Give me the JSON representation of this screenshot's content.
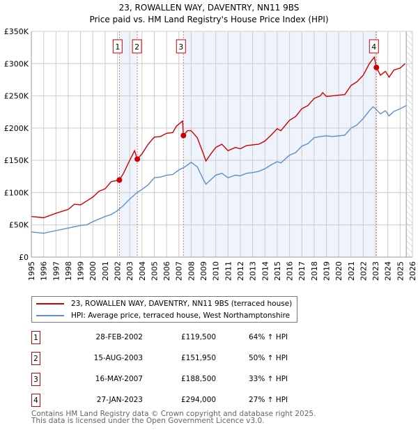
{
  "chart_data": {
    "type": "line",
    "title": "23, ROWALLEN WAY, DAVENTRY, NN11 9BS",
    "subtitle": "Price paid vs. HM Land Registry's House Price Index (HPI)",
    "xlim": [
      1995,
      2026
    ],
    "ylim": [
      0,
      350000
    ],
    "x_ticks": [
      "1995",
      "1996",
      "1997",
      "1998",
      "1999",
      "2000",
      "2001",
      "2002",
      "2003",
      "2004",
      "2005",
      "2006",
      "2007",
      "2008",
      "2009",
      "2010",
      "2011",
      "2012",
      "2013",
      "2014",
      "2015",
      "2016",
      "2017",
      "2018",
      "2019",
      "2020",
      "2021",
      "2022",
      "2023",
      "2024",
      "2025",
      "2026"
    ],
    "y_ticks": [
      {
        "v": 0,
        "label": "£0"
      },
      {
        "v": 50000,
        "label": "£50K"
      },
      {
        "v": 100000,
        "label": "£100K"
      },
      {
        "v": 150000,
        "label": "£150K"
      },
      {
        "v": 200000,
        "label": "£200K"
      },
      {
        "v": 250000,
        "label": "£250K"
      },
      {
        "v": 300000,
        "label": "£300K"
      },
      {
        "v": 350000,
        "label": "£350K"
      }
    ],
    "grid": true,
    "series": [
      {
        "name": "23, ROWALLEN WAY, DAVENTRY, NN11 9BS (terraced house)",
        "color": "#cc0000",
        "x": [
          1995,
          1996,
          1997,
          1998,
          1998.5,
          1999,
          2000,
          2000.5,
          2001,
          2001.5,
          2002.16,
          2002.5,
          2003,
          2003.4,
          2003.62,
          2004,
          2004.5,
          2005,
          2005.5,
          2006,
          2006.5,
          2006.8,
          2007.3,
          2007.37,
          2007.7,
          2008,
          2008.5,
          2009,
          2009.2,
          2009.6,
          2010,
          2010.5,
          2011,
          2011.6,
          2012,
          2012.5,
          2013,
          2013.5,
          2014,
          2014.5,
          2015,
          2015.3,
          2016,
          2016.5,
          2017,
          2017.5,
          2018,
          2018.5,
          2018.7,
          2019,
          2019.5,
          2020,
          2020.5,
          2021,
          2021.5,
          2022,
          2022.5,
          2022.9,
          2023.07,
          2023.4,
          2023.8,
          2024.1,
          2024.5,
          2025,
          2025.4
        ],
        "y": [
          63,
          61,
          68,
          74,
          82,
          81,
          93,
          102,
          106,
          117,
          119.5,
          130,
          150,
          165,
          152,
          160,
          175,
          186,
          187,
          192,
          193,
          203,
          211,
          188.5,
          196,
          196,
          185,
          160,
          149,
          160,
          170,
          175,
          165,
          170,
          168,
          173,
          174,
          175,
          180,
          189,
          199,
          196,
          212,
          218,
          230,
          235,
          246,
          250,
          255,
          249,
          250,
          251,
          252,
          266,
          272,
          282,
          300,
          310,
          294,
          282,
          288,
          279,
          290,
          293,
          300
        ]
      },
      {
        "name": "HPI: Average price, terraced house, West Northamptonshire",
        "color": "#5b8fd0",
        "x": [
          1995,
          1996,
          1997,
          1998,
          1999,
          1999.5,
          2000,
          2001,
          2001.5,
          2002,
          2002.5,
          2003,
          2003.6,
          2004,
          2004.5,
          2005,
          2005.5,
          2006,
          2006.5,
          2007,
          2007.5,
          2008,
          2008.5,
          2009,
          2009.2,
          2009.6,
          2010,
          2010.5,
          2011,
          2011.6,
          2012,
          2012.5,
          2013,
          2013.5,
          2014,
          2014.5,
          2015,
          2015.3,
          2016,
          2016.5,
          2017,
          2017.5,
          2018,
          2018.5,
          2019,
          2019.5,
          2020,
          2020.5,
          2021,
          2021.5,
          2022,
          2022.5,
          2022.8,
          2023,
          2023.4,
          2023.8,
          2024.1,
          2024.5,
          2025,
          2025.5
        ],
        "y": [
          39,
          37,
          41,
          45,
          49,
          50,
          55,
          63,
          66,
          72,
          80,
          90,
          100,
          105,
          112,
          123,
          124,
          127,
          128,
          135,
          140,
          147,
          140,
          120,
          113,
          120,
          127,
          130,
          123,
          127,
          126,
          130,
          131,
          133,
          137,
          143,
          148,
          146,
          158,
          162,
          172,
          176,
          185,
          187,
          188,
          187,
          188,
          189,
          200,
          205,
          215,
          227,
          233,
          230,
          222,
          227,
          219,
          226,
          230,
          235
        ]
      }
    ],
    "y_units": "thousands GBP",
    "sales": [
      {
        "id": "1",
        "x": 2002.16,
        "price": 119500,
        "date": "28-FEB-2002",
        "price_label": "£119,500",
        "hpi": "64% ↑ HPI"
      },
      {
        "id": "2",
        "x": 2003.62,
        "price": 151950,
        "date": "15-AUG-2003",
        "price_label": "£151,950",
        "hpi": "50% ↑ HPI"
      },
      {
        "id": "3",
        "x": 2007.37,
        "price": 188500,
        "date": "16-MAY-2007",
        "price_label": "£188,500",
        "hpi": "33% ↑ HPI"
      },
      {
        "id": "4",
        "x": 2023.07,
        "price": 294000,
        "date": "27-JAN-2023",
        "price_label": "£294,000",
        "hpi": "27% ↑ HPI"
      }
    ],
    "forecast_start": 2025.5,
    "legend_position": "below"
  },
  "footer": {
    "line1": "Contains HM Land Registry data © Crown copyright and database right 2025.",
    "line2": "This data is licensed under the Open Government Licence v3.0."
  }
}
